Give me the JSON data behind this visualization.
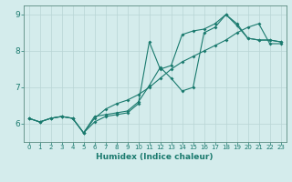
{
  "xlabel": "Humidex (Indice chaleur)",
  "bg_color": "#d4ecec",
  "line_color": "#1a7a6e",
  "grid_color": "#b8d4d4",
  "xlim": [
    -0.5,
    23.5
  ],
  "ylim": [
    5.5,
    9.25
  ],
  "yticks": [
    6,
    7,
    8,
    9
  ],
  "xticks": [
    0,
    1,
    2,
    3,
    4,
    5,
    6,
    7,
    8,
    9,
    10,
    11,
    12,
    13,
    14,
    15,
    16,
    17,
    18,
    19,
    20,
    21,
    22,
    23
  ],
  "line1_x": [
    0,
    1,
    2,
    3,
    4,
    5,
    6,
    7,
    8,
    9,
    10,
    11,
    12,
    13,
    14,
    15,
    16,
    17,
    18,
    19,
    20,
    21,
    22,
    23
  ],
  "line1_y": [
    6.15,
    6.05,
    6.15,
    6.2,
    6.15,
    5.75,
    6.2,
    6.25,
    6.3,
    6.35,
    6.6,
    7.05,
    7.55,
    7.25,
    6.9,
    7.0,
    8.5,
    8.65,
    9.0,
    8.7,
    8.35,
    8.3,
    8.3,
    8.25
  ],
  "line2_x": [
    0,
    1,
    2,
    3,
    4,
    5,
    6,
    7,
    8,
    9,
    10,
    11,
    12,
    13,
    14,
    15,
    16,
    17,
    18,
    19,
    20,
    21,
    22,
    23
  ],
  "line2_y": [
    6.15,
    6.05,
    6.15,
    6.2,
    6.15,
    5.75,
    6.15,
    6.4,
    6.55,
    6.65,
    6.8,
    7.0,
    7.25,
    7.5,
    7.7,
    7.85,
    8.0,
    8.15,
    8.3,
    8.5,
    8.65,
    8.75,
    8.2,
    8.2
  ],
  "line3_x": [
    0,
    1,
    2,
    3,
    4,
    5,
    6,
    7,
    8,
    9,
    10,
    11,
    12,
    13,
    14,
    15,
    16,
    17,
    18,
    19,
    20,
    21,
    22,
    23
  ],
  "line3_y": [
    6.15,
    6.05,
    6.15,
    6.2,
    6.15,
    5.75,
    6.05,
    6.2,
    6.25,
    6.3,
    6.55,
    8.25,
    7.5,
    7.6,
    8.45,
    8.55,
    8.6,
    8.75,
    9.0,
    8.75,
    8.35,
    8.3,
    8.3,
    8.25
  ],
  "marker_size": 2.0,
  "line_width": 0.8,
  "xlabel_fontsize": 6.5,
  "tick_fontsize_x": 5.0,
  "tick_fontsize_y": 6.5
}
